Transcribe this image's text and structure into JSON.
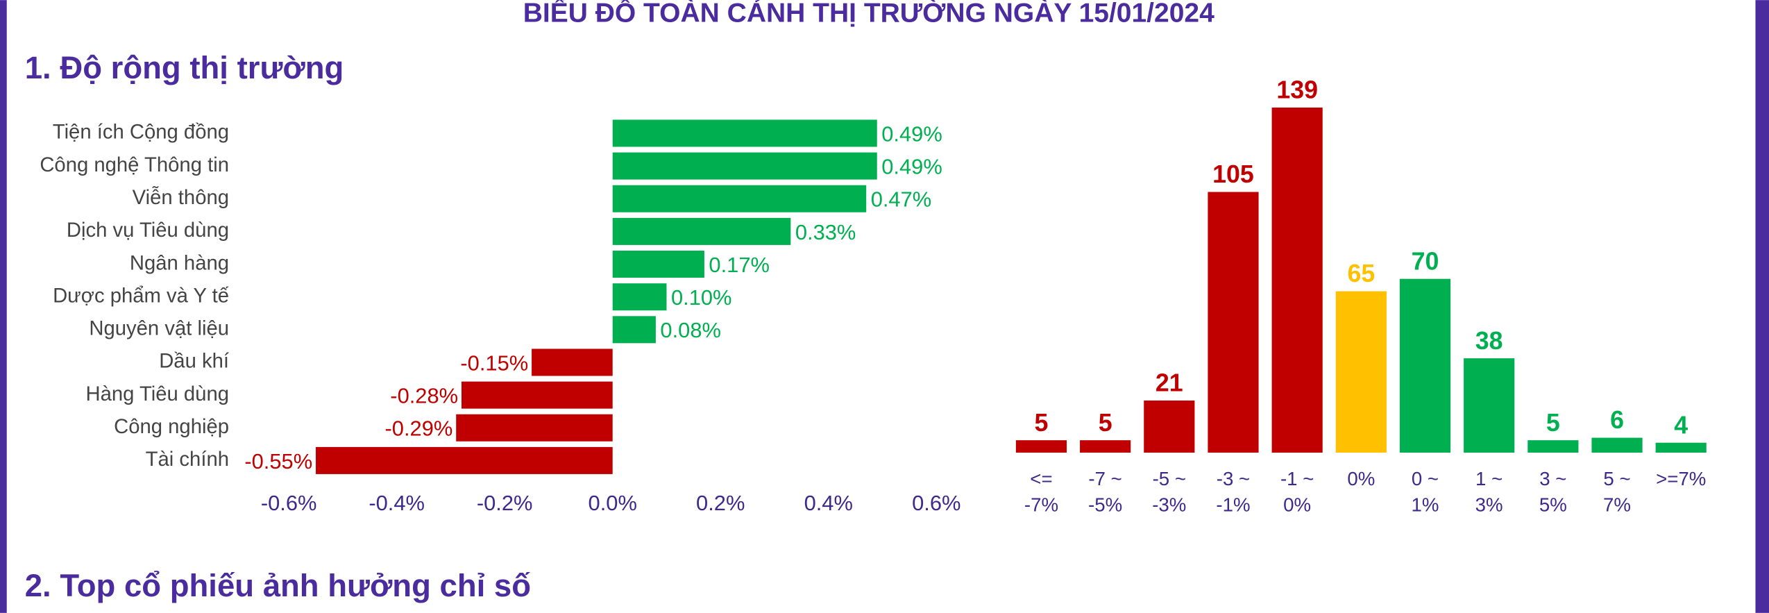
{
  "page": {
    "title": "BIỂU ĐỒ TOÀN CẢNH THỊ TRƯỜNG NGÀY 15/01/2024",
    "sections": [
      "1. Độ rộng thị trường",
      "2. Top cổ phiếu ảnh hưởng chỉ số"
    ]
  },
  "chart_data": [
    {
      "type": "hbar",
      "categories": [
        "Tiện ích Cộng đồng",
        "Công nghệ Thông tin",
        "Viễn thông",
        "Dịch vụ Tiêu dùng",
        "Ngân hàng",
        "Dược phẩm và Y tế",
        "Nguyên vật liệu",
        "Dầu khí",
        "Hàng Tiêu dùng",
        "Công nghiệp",
        "Tài chính"
      ],
      "values": [
        0.49,
        0.49,
        0.47,
        0.33,
        0.17,
        0.1,
        0.08,
        -0.15,
        -0.28,
        -0.29,
        -0.55
      ],
      "value_labels": [
        "0.49%",
        "0.49%",
        "0.47%",
        "0.33%",
        "0.17%",
        "0.10%",
        "0.08%",
        "-0.15%",
        "-0.28%",
        "-0.29%",
        "-0.55%"
      ],
      "positive_color": "#00B050",
      "negative_color": "#C00000",
      "xlim": [
        -0.6,
        0.6
      ],
      "xticks": [
        {
          "value": -0.6,
          "label": "-0.6%"
        },
        {
          "value": -0.4,
          "label": "-0.4%"
        },
        {
          "value": -0.2,
          "label": "-0.2%"
        },
        {
          "value": 0,
          "label": "0.0%"
        },
        {
          "value": 0.2,
          "label": "0.2%"
        },
        {
          "value": 0.4,
          "label": "0.4%"
        },
        {
          "value": 0.6,
          "label": "0.6%"
        }
      ]
    },
    {
      "type": "bar",
      "categories": [
        "<=\n-7%",
        "-7 ~\n-5%",
        "-5 ~\n-3%",
        "-3 ~\n-1%",
        "-1 ~\n0%",
        "0%",
        "0 ~\n1%",
        "1 ~\n3%",
        "3 ~\n5%",
        "5 ~\n7%",
        ">=7%"
      ],
      "values": [
        5,
        5,
        21,
        105,
        139,
        65,
        70,
        38,
        5,
        6,
        4
      ],
      "colors": [
        "#C00000",
        "#C00000",
        "#C00000",
        "#C00000",
        "#C00000",
        "#FFC000",
        "#00B050",
        "#00B050",
        "#00B050",
        "#00B050",
        "#00B050"
      ],
      "ylim": [
        0,
        140
      ]
    }
  ]
}
